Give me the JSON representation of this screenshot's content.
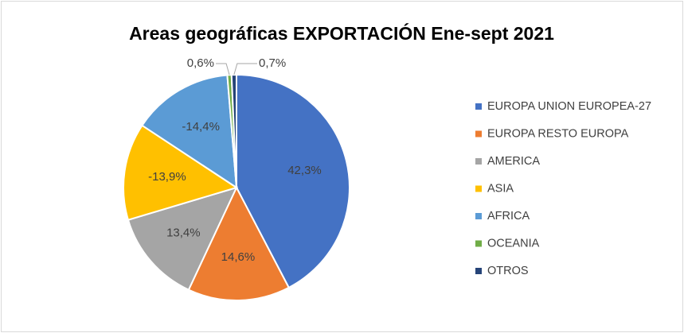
{
  "chart_data": {
    "type": "pie",
    "title": "Areas geográficas EXPORTACIÓN Ene-sept 2021",
    "categories": [
      "EUROPA UNION EUROPEA-27",
      "EUROPA RESTO EUROPA",
      "AMERICA",
      "ASIA",
      "AFRICA",
      "OCEANIA",
      "OTROS"
    ],
    "values": [
      42.3,
      14.6,
      13.4,
      -13.9,
      -14.4,
      0.6,
      0.7
    ],
    "value_labels": [
      "42,3%",
      "14,6%",
      "13,4%",
      "-13,9%",
      "-14,4%",
      "0,6%",
      "0,7%"
    ],
    "colors": [
      "#4472c4",
      "#ed7d31",
      "#a5a5a5",
      "#ffc000",
      "#5b9bd5",
      "#70ad47",
      "#264478"
    ],
    "legend": "right"
  }
}
